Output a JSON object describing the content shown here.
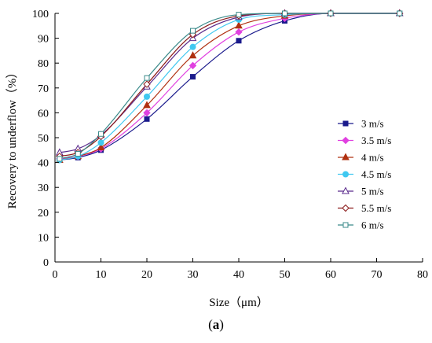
{
  "chart_data": {
    "type": "line",
    "xlabel": "Size（μm）",
    "ylabel": "Recovery to underflow（%）",
    "xlim": [
      0,
      80
    ],
    "ylim": [
      0,
      100
    ],
    "x_ticks": [
      "0",
      "10",
      "20",
      "30",
      "40",
      "50",
      "60",
      "70",
      "80"
    ],
    "y_ticks": [
      "0",
      "10",
      "20",
      "30",
      "40",
      "50",
      "60",
      "70",
      "80",
      "90",
      "100"
    ],
    "grid": false,
    "legend_position": "right",
    "caption_open": "(",
    "caption_letter": "a",
    "caption_close": ")",
    "x": [
      1,
      5,
      10,
      20,
      30,
      40,
      50,
      60,
      75
    ],
    "series": [
      {
        "name": "3 m/s",
        "color": "#1a1a8c",
        "marker": "square-filled",
        "values": [
          41,
          42,
          45,
          57.5,
          74.5,
          89,
          97,
          100,
          100
        ]
      },
      {
        "name": "3.5 m/s",
        "color": "#e040e0",
        "marker": "diamond-filled",
        "values": [
          41.5,
          42.5,
          45.5,
          60,
          79,
          92.5,
          98,
          100,
          100
        ]
      },
      {
        "name": "4 m/s",
        "color": "#b03010",
        "marker": "triangle-filled",
        "values": [
          41,
          42.5,
          46,
          63,
          83,
          95,
          99,
          100,
          100
        ]
      },
      {
        "name": "4.5 m/s",
        "color": "#40c8f0",
        "marker": "circle-filled",
        "values": [
          41,
          42.5,
          48,
          66.5,
          86.5,
          97.5,
          99.5,
          100,
          100
        ]
      },
      {
        "name": "5 m/s",
        "color": "#5a2a8c",
        "marker": "triangle-open",
        "values": [
          44,
          45.5,
          51,
          70.5,
          90,
          98.5,
          100,
          100,
          100
        ]
      },
      {
        "name": "5.5 m/s",
        "color": "#8b1a1a",
        "marker": "diamond-open",
        "values": [
          42.5,
          44,
          50.5,
          71.5,
          91.5,
          99,
          100,
          100,
          100
        ]
      },
      {
        "name": "6 m/s",
        "color": "#3a8a8a",
        "marker": "square-open",
        "values": [
          41.5,
          43.5,
          51.5,
          74,
          93,
          99.5,
          100,
          100,
          100
        ]
      }
    ]
  }
}
